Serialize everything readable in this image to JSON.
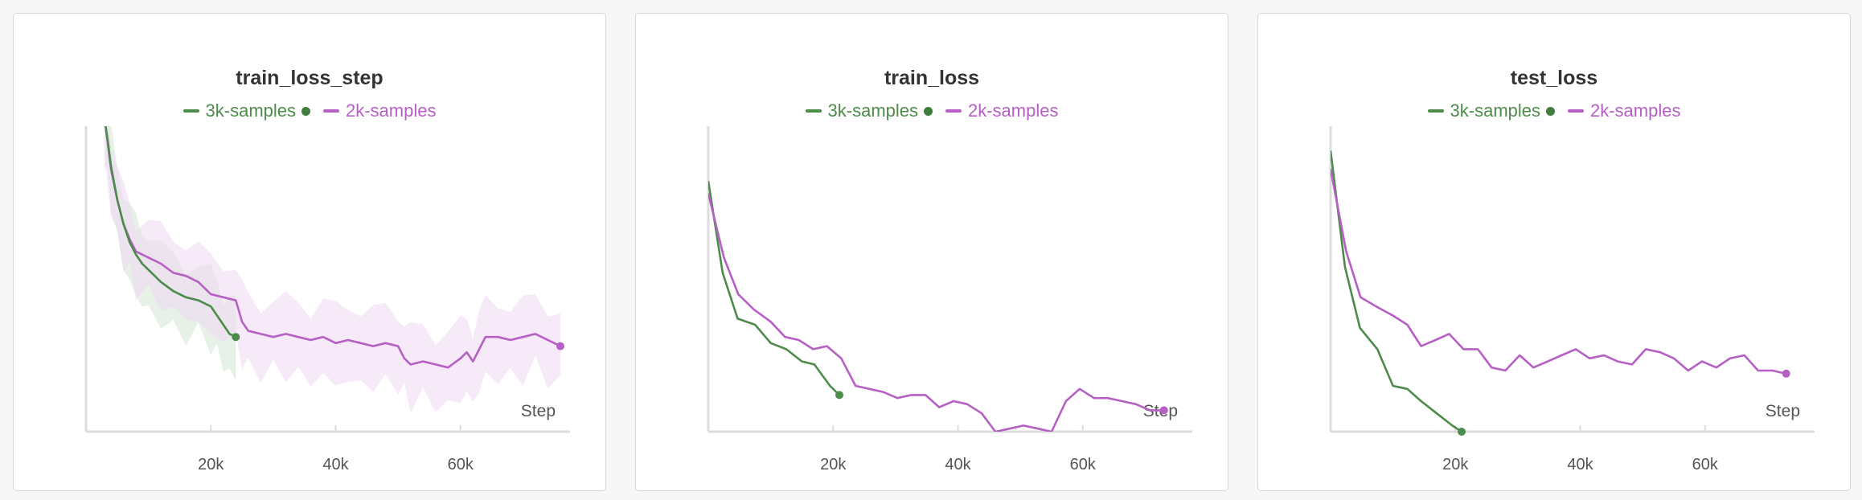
{
  "colors": {
    "green": "#4c8b4a",
    "purple": "#b65fc4",
    "axis": "#dcdcdc",
    "tick_text": "#555555",
    "green_band": "#d4e6d3",
    "purple_band": "#efd7f3"
  },
  "legend_marker_icon": "dot-icon",
  "chart_data": [
    {
      "type": "line",
      "title": "train_loss_step",
      "xlabel": "Step",
      "ylabel": "",
      "xlim": [
        0,
        76000
      ],
      "ylim": [
        0,
        1
      ],
      "x_ticks": [
        20000,
        40000,
        60000
      ],
      "x_tick_labels": [
        "20k",
        "40k",
        "60k"
      ],
      "y_tick_labels": [],
      "legend_placement": "top-center",
      "grid": false,
      "smoothed": true,
      "series": [
        {
          "name": "3k-samples",
          "color": "#4c8b4a",
          "x": [
            3000,
            3500,
            4000,
            5000,
            6000,
            7000,
            8000,
            9000,
            10000,
            12000,
            14000,
            16000,
            18000,
            20000,
            21000,
            22000,
            23000,
            24000
          ],
          "y": [
            1.02,
            0.95,
            0.87,
            0.76,
            0.68,
            0.62,
            0.58,
            0.55,
            0.53,
            0.49,
            0.46,
            0.44,
            0.43,
            0.41,
            0.38,
            0.35,
            0.32,
            0.31
          ]
        },
        {
          "name": "2k-samples",
          "color": "#b65fc4",
          "x": [
            3000,
            4000,
            5000,
            6000,
            7000,
            8000,
            10000,
            12000,
            14000,
            16000,
            18000,
            20000,
            22000,
            24000,
            25000,
            26000,
            28000,
            30000,
            32000,
            34000,
            36000,
            38000,
            40000,
            42000,
            44000,
            46000,
            48000,
            50000,
            51000,
            52000,
            54000,
            56000,
            58000,
            60000,
            61000,
            62000,
            63000,
            64000,
            66000,
            68000,
            70000,
            72000,
            74000,
            76000
          ],
          "y": [
            1.02,
            0.86,
            0.76,
            0.68,
            0.63,
            0.59,
            0.57,
            0.55,
            0.52,
            0.51,
            0.49,
            0.45,
            0.44,
            0.43,
            0.36,
            0.33,
            0.32,
            0.31,
            0.32,
            0.31,
            0.3,
            0.31,
            0.29,
            0.3,
            0.29,
            0.28,
            0.29,
            0.28,
            0.24,
            0.22,
            0.23,
            0.22,
            0.21,
            0.24,
            0.26,
            0.23,
            0.27,
            0.31,
            0.31,
            0.3,
            0.31,
            0.32,
            0.3,
            0.28
          ]
        }
      ]
    },
    {
      "type": "line",
      "title": "train_loss",
      "xlabel": "Step",
      "ylabel": "",
      "xlim": [
        0,
        76000
      ],
      "ylim": [
        0,
        1
      ],
      "x_ticks": [
        20000,
        40000,
        60000
      ],
      "x_tick_labels": [
        "20k",
        "40k",
        "60k"
      ],
      "y_tick_labels": [],
      "legend_placement": "top-center",
      "grid": false,
      "series": [
        {
          "name": "3k-samples",
          "color": "#4c8b4a",
          "x": [
            0,
            2300,
            4700,
            7500,
            10000,
            12500,
            15000,
            17000,
            19500,
            21000
          ],
          "y": [
            0.82,
            0.52,
            0.37,
            0.35,
            0.29,
            0.27,
            0.23,
            0.22,
            0.15,
            0.12
          ]
        },
        {
          "name": "2k-samples",
          "color": "#b65fc4",
          "x": [
            0,
            2500,
            4800,
            7300,
            10000,
            12300,
            14500,
            16800,
            19000,
            21300,
            23600,
            25800,
            28000,
            30300,
            32500,
            34800,
            37000,
            39300,
            41500,
            43800,
            46000,
            48300,
            50500,
            52800,
            55000,
            57300,
            59500,
            61800,
            64000,
            66300,
            68500,
            70800,
            73000
          ],
          "y": [
            0.78,
            0.57,
            0.45,
            0.4,
            0.36,
            0.31,
            0.3,
            0.27,
            0.28,
            0.24,
            0.15,
            0.14,
            0.13,
            0.11,
            0.12,
            0.12,
            0.08,
            0.1,
            0.09,
            0.06,
            0.0,
            0.01,
            0.02,
            0.01,
            0.0,
            0.1,
            0.14,
            0.11,
            0.11,
            0.1,
            0.09,
            0.07,
            0.07
          ]
        }
      ]
    },
    {
      "type": "line",
      "title": "test_loss",
      "xlabel": "Step",
      "ylabel": "",
      "xlim": [
        0,
        76000
      ],
      "ylim": [
        0,
        1
      ],
      "x_ticks": [
        20000,
        40000,
        60000
      ],
      "x_tick_labels": [
        "20k",
        "40k",
        "60k"
      ],
      "y_tick_labels": [],
      "legend_placement": "top-center",
      "grid": false,
      "series": [
        {
          "name": "3k-samples",
          "color": "#4c8b4a",
          "x": [
            0,
            2300,
            4700,
            7500,
            10000,
            12300,
            14500,
            17000,
            19500,
            21000
          ],
          "y": [
            0.92,
            0.54,
            0.34,
            0.27,
            0.15,
            0.14,
            0.1,
            0.06,
            0.02,
            0.0
          ]
        },
        {
          "name": "2k-samples",
          "color": "#b65fc4",
          "x": [
            0,
            2500,
            4800,
            7300,
            10000,
            12300,
            14500,
            16800,
            19000,
            21300,
            23600,
            25800,
            28000,
            30300,
            32500,
            34800,
            37000,
            39300,
            41500,
            43800,
            46000,
            48300,
            50500,
            52800,
            55000,
            57300,
            59500,
            61800,
            64000,
            66300,
            68500,
            70800,
            73000
          ],
          "y": [
            0.86,
            0.59,
            0.44,
            0.41,
            0.38,
            0.35,
            0.28,
            0.3,
            0.32,
            0.27,
            0.27,
            0.21,
            0.2,
            0.25,
            0.21,
            0.23,
            0.25,
            0.27,
            0.24,
            0.25,
            0.23,
            0.22,
            0.27,
            0.26,
            0.24,
            0.2,
            0.23,
            0.21,
            0.24,
            0.25,
            0.2,
            0.2,
            0.19
          ]
        }
      ]
    }
  ]
}
